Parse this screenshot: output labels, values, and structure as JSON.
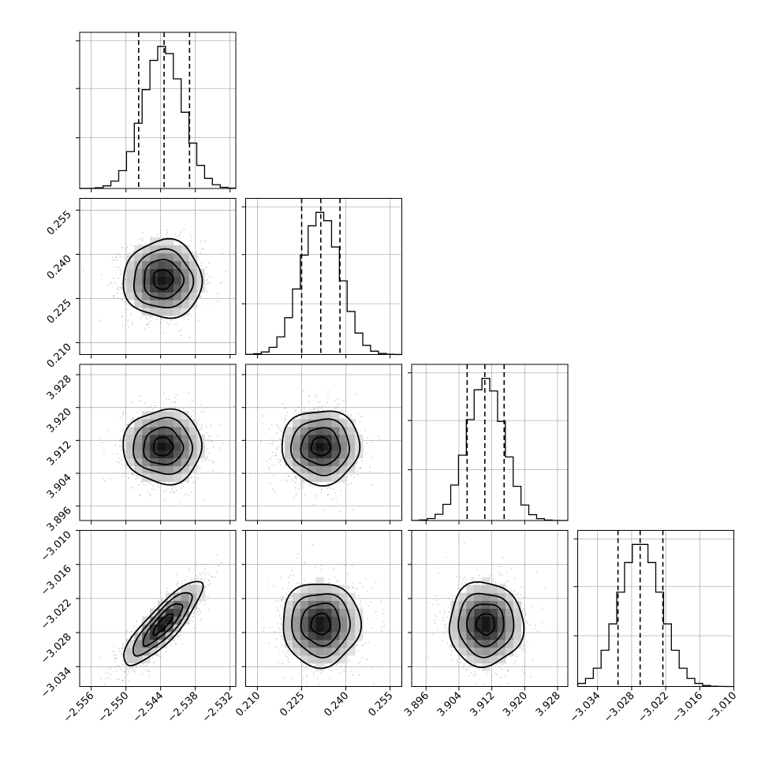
{
  "chart_data": {
    "type": "corner",
    "parameters": [
      {
        "mean": -2.5436,
        "sd": 0.0034,
        "q16": -2.5478,
        "q50": -2.5434,
        "q84": -2.539,
        "range": [
          -2.558,
          -2.531
        ],
        "ticks": [
          -2.556,
          -2.55,
          -2.544,
          -2.538,
          -2.532
        ],
        "tick_labels": [
          "−2.556",
          "−2.550",
          "−2.544",
          "−2.538",
          "−2.532"
        ]
      },
      {
        "mean": 0.2315,
        "sd": 0.0066,
        "q16": 0.225,
        "q50": 0.2315,
        "q84": 0.238,
        "range": [
          0.206,
          0.259
        ],
        "ticks": [
          0.21,
          0.225,
          0.24,
          0.255
        ],
        "tick_labels": [
          "0.210",
          "0.225",
          "0.240",
          "0.255"
        ]
      },
      {
        "mean": 3.9105,
        "sd": 0.0045,
        "q16": 3.906,
        "q50": 3.9103,
        "q84": 3.915,
        "range": [
          3.8925,
          3.9305
        ],
        "ticks": [
          3.896,
          3.904,
          3.912,
          3.92,
          3.928
        ],
        "tick_labels": [
          "3.896",
          "3.904",
          "3.912",
          "3.920",
          "3.928"
        ]
      },
      {
        "mean": -3.0265,
        "sd": 0.0037,
        "q16": -3.0304,
        "q50": -3.0265,
        "q84": -3.0225,
        "range": [
          -3.0375,
          -3.01
        ],
        "ticks": [
          -3.034,
          -3.028,
          -3.022,
          -3.016,
          -3.01
        ],
        "tick_labels": [
          "−3.034",
          "−3.028",
          "−3.022",
          "−3.016",
          "−3.010"
        ]
      }
    ],
    "correlations": [
      [
        1.0,
        0.0,
        0.0,
        0.85
      ],
      [
        0.0,
        1.0,
        0.0,
        0.0
      ],
      [
        0.0,
        0.0,
        1.0,
        0.0
      ],
      [
        0.85,
        0.0,
        0.0,
        1.0
      ]
    ],
    "grid": true,
    "contour_levels_sigma": [
      0.5,
      1.0,
      1.5,
      2.0
    ],
    "colors": {
      "points": "#9a9a9a",
      "lines": "#000000",
      "grid": "#b0b0b0"
    }
  }
}
